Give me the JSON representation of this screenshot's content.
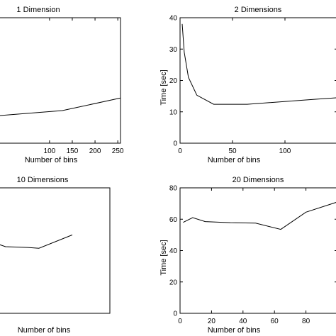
{
  "chart_data": [
    {
      "type": "line",
      "title": "1 Dimension",
      "xlabel": "Number of bins",
      "ylabel": "",
      "xlim": [
        -12,
        256
      ],
      "ylim": [
        0,
        10
      ],
      "xticks": [
        100,
        150,
        200,
        250
      ],
      "yticks": [],
      "series": [
        {
          "x": [
            -12,
            128,
            256
          ],
          "values": [
            2.2,
            2.6,
            3.6
          ]
        }
      ]
    },
    {
      "type": "line",
      "title": "2 Dimensions",
      "xlabel": "Number of bins",
      "ylabel": "Time [sec]",
      "xlim": [
        0,
        150
      ],
      "ylim": [
        0,
        40
      ],
      "xticks": [
        0,
        50,
        100
      ],
      "yticks": [
        0,
        10,
        20,
        30,
        40
      ],
      "series": [
        {
          "x": [
            2,
            4,
            8,
            16,
            32,
            64,
            128,
            150
          ],
          "values": [
            38,
            29,
            21,
            15.3,
            12.4,
            12.4,
            14,
            14.5
          ]
        }
      ]
    },
    {
      "type": "line",
      "title": "10 Dimensions",
      "xlabel": "Number of bins",
      "ylabel": "",
      "xlim": [
        -10,
        150
      ],
      "ylim": [
        0,
        80
      ],
      "xticks": [],
      "yticks": [],
      "series": [
        {
          "x": [
            -10,
            0,
            32,
            48,
            96
          ],
          "values": [
            44,
            42.5,
            42,
            41.5,
            50
          ]
        }
      ]
    },
    {
      "type": "line",
      "title": "20 Dimensions",
      "xlabel": "Number of bins",
      "ylabel": "Time [sec]",
      "xlim": [
        0,
        100
      ],
      "ylim": [
        0,
        80
      ],
      "xticks": [
        0,
        20,
        40,
        60,
        80
      ],
      "yticks": [
        0,
        20,
        40,
        60,
        80
      ],
      "series": [
        {
          "x": [
            2,
            8,
            16,
            32,
            48,
            64,
            80,
            100
          ],
          "values": [
            58,
            61,
            58.5,
            57.8,
            57.5,
            53.5,
            64.5,
            71
          ]
        }
      ]
    }
  ]
}
